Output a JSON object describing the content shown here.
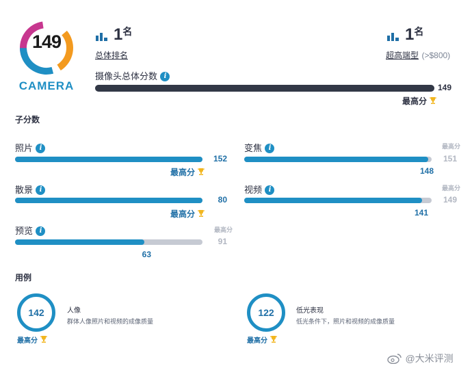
{
  "header": {
    "logo_score": "149",
    "logo_word": "CAMERA",
    "overall_rank": {
      "rank": "1",
      "unit": "名",
      "label": "总体排名"
    },
    "segment_rank": {
      "rank": "1",
      "unit": "名",
      "label": "超高端型",
      "sub": "(>$800)"
    }
  },
  "overall": {
    "label": "摄像头总体分数",
    "value": "149",
    "value_fraction": 1.0,
    "best_label": "最高分"
  },
  "subscores": {
    "title": "子分数",
    "items": [
      {
        "label": "照片",
        "value": "152",
        "best_label": "最高分"
      },
      {
        "label": "变焦",
        "value": "148",
        "max_label": "最高分",
        "max_value": "151"
      },
      {
        "label": "散景",
        "value": "80",
        "best_label": "最高分"
      },
      {
        "label": "视频",
        "value": "141",
        "max_label": "最高分",
        "max_value": "149"
      },
      {
        "label": "预览",
        "value": "63",
        "max_label": "最高分",
        "max_value": "91"
      }
    ]
  },
  "usecases": {
    "title": "用例",
    "items": [
      {
        "score": "142",
        "title": "人像",
        "desc": "群体人像照片和视频的成像质量",
        "best_label": "最高分"
      },
      {
        "score": "122",
        "title": "低光表现",
        "desc": "低光条件下，照片和视频的成像质量",
        "best_label": "最高分"
      }
    ]
  },
  "watermark": "@大米评测",
  "colors": {
    "accent": "#1f8fc4",
    "dark_bar": "#323846",
    "track": "#c6cad3",
    "trophy": "#f2b61f"
  }
}
